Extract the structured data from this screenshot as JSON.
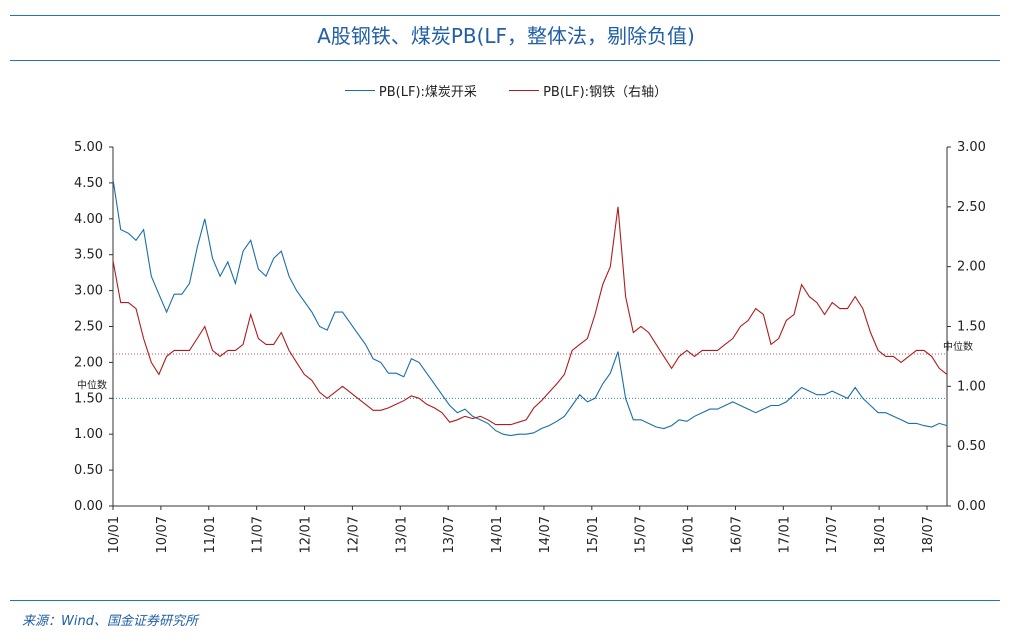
{
  "header": {
    "title": "A股钢铁、煤炭PB(LF，整体法，剔除负值)"
  },
  "footer": {
    "source": "来源：Wind、国金证券研究所"
  },
  "colors": {
    "coal": "#1a6fa8",
    "steel": "#b01c1c",
    "rule": "#1f77b4",
    "title": "#1f5fa8"
  },
  "chart_data": {
    "type": "line",
    "title": "A股钢铁、煤炭PB(LF，整体法，剔除负值)",
    "x": [
      "10/01",
      "10/07",
      "11/01",
      "11/07",
      "12/01",
      "12/07",
      "13/01",
      "13/07",
      "14/01",
      "14/07",
      "15/01",
      "15/07",
      "16/01",
      "16/07",
      "17/01",
      "17/07",
      "18/01",
      "18/07"
    ],
    "x_ticks": [
      "10/01",
      "10/07",
      "11/01",
      "11/07",
      "12/01",
      "12/07",
      "13/01",
      "13/07",
      "14/01",
      "14/07",
      "15/01",
      "15/07",
      "16/01",
      "16/07",
      "17/01",
      "17/07",
      "18/01",
      "18/07"
    ],
    "yleft": {
      "lim": [
        0,
        5
      ],
      "ticks": [
        "0.00",
        "0.50",
        "1.00",
        "1.50",
        "2.00",
        "2.50",
        "3.00",
        "3.50",
        "4.00",
        "4.50",
        "5.00"
      ]
    },
    "yright": {
      "lim": [
        0,
        3
      ],
      "ticks": [
        "0.00",
        "0.50",
        "1.00",
        "1.50",
        "2.00",
        "2.50",
        "3.00"
      ]
    },
    "median_label": "中位数",
    "series": [
      {
        "name": "PB(LF):煤炭开采",
        "axis": "left",
        "color": "#1a6fa8",
        "median": 1.5,
        "values": [
          [
            0,
            4.55
          ],
          [
            1,
            3.85
          ],
          [
            2,
            3.8
          ],
          [
            3,
            3.7
          ],
          [
            4,
            3.85
          ],
          [
            5,
            3.2
          ],
          [
            6,
            2.95
          ],
          [
            7,
            2.7
          ],
          [
            8,
            2.95
          ],
          [
            9,
            2.95
          ],
          [
            10,
            3.1
          ],
          [
            11,
            3.6
          ],
          [
            12,
            4.0
          ],
          [
            13,
            3.45
          ],
          [
            14,
            3.2
          ],
          [
            15,
            3.4
          ],
          [
            16,
            3.1
          ],
          [
            17,
            3.55
          ],
          [
            18,
            3.7
          ],
          [
            19,
            3.3
          ],
          [
            20,
            3.2
          ],
          [
            21,
            3.45
          ],
          [
            22,
            3.55
          ],
          [
            23,
            3.2
          ],
          [
            24,
            3.0
          ],
          [
            25,
            2.85
          ],
          [
            26,
            2.7
          ],
          [
            27,
            2.5
          ],
          [
            28,
            2.45
          ],
          [
            29,
            2.7
          ],
          [
            30,
            2.7
          ],
          [
            31,
            2.55
          ],
          [
            32,
            2.4
          ],
          [
            33,
            2.25
          ],
          [
            34,
            2.05
          ],
          [
            35,
            2.0
          ],
          [
            36,
            1.85
          ],
          [
            37,
            1.85
          ],
          [
            38,
            1.8
          ],
          [
            39,
            2.05
          ],
          [
            40,
            2.0
          ],
          [
            41,
            1.85
          ],
          [
            42,
            1.7
          ],
          [
            43,
            1.55
          ],
          [
            44,
            1.4
          ],
          [
            45,
            1.3
          ],
          [
            46,
            1.35
          ],
          [
            47,
            1.25
          ],
          [
            48,
            1.2
          ],
          [
            49,
            1.15
          ],
          [
            50,
            1.05
          ],
          [
            51,
            1.0
          ],
          [
            52,
            0.98
          ],
          [
            53,
            1.0
          ],
          [
            54,
            1.0
          ],
          [
            55,
            1.02
          ],
          [
            56,
            1.08
          ],
          [
            57,
            1.12
          ],
          [
            58,
            1.18
          ],
          [
            59,
            1.25
          ],
          [
            60,
            1.4
          ],
          [
            61,
            1.55
          ],
          [
            62,
            1.45
          ],
          [
            63,
            1.5
          ],
          [
            64,
            1.7
          ],
          [
            65,
            1.85
          ],
          [
            66,
            2.15
          ],
          [
            67,
            1.5
          ],
          [
            68,
            1.2
          ],
          [
            69,
            1.2
          ],
          [
            70,
            1.15
          ],
          [
            71,
            1.1
          ],
          [
            72,
            1.08
          ],
          [
            73,
            1.12
          ],
          [
            74,
            1.2
          ],
          [
            75,
            1.18
          ],
          [
            76,
            1.25
          ],
          [
            77,
            1.3
          ],
          [
            78,
            1.35
          ],
          [
            79,
            1.35
          ],
          [
            80,
            1.4
          ],
          [
            81,
            1.45
          ],
          [
            82,
            1.4
          ],
          [
            83,
            1.35
          ],
          [
            84,
            1.3
          ],
          [
            85,
            1.35
          ],
          [
            86,
            1.4
          ],
          [
            87,
            1.4
          ],
          [
            88,
            1.45
          ],
          [
            89,
            1.55
          ],
          [
            90,
            1.65
          ],
          [
            91,
            1.6
          ],
          [
            92,
            1.55
          ],
          [
            93,
            1.55
          ],
          [
            94,
            1.6
          ],
          [
            95,
            1.55
          ],
          [
            96,
            1.5
          ],
          [
            97,
            1.65
          ],
          [
            98,
            1.5
          ],
          [
            99,
            1.4
          ],
          [
            100,
            1.3
          ],
          [
            101,
            1.3
          ],
          [
            102,
            1.25
          ],
          [
            103,
            1.2
          ],
          [
            104,
            1.15
          ],
          [
            105,
            1.15
          ],
          [
            106,
            1.12
          ],
          [
            107,
            1.1
          ],
          [
            108,
            1.15
          ],
          [
            109,
            1.12
          ]
        ]
      },
      {
        "name": "PB(LF):钢铁（右轴）",
        "axis": "right",
        "color": "#b01c1c",
        "median": 1.27,
        "values": [
          [
            0,
            2.05
          ],
          [
            1,
            1.7
          ],
          [
            2,
            1.7
          ],
          [
            3,
            1.65
          ],
          [
            4,
            1.4
          ],
          [
            5,
            1.2
          ],
          [
            6,
            1.1
          ],
          [
            7,
            1.25
          ],
          [
            8,
            1.3
          ],
          [
            9,
            1.3
          ],
          [
            10,
            1.3
          ],
          [
            11,
            1.4
          ],
          [
            12,
            1.5
          ],
          [
            13,
            1.3
          ],
          [
            14,
            1.25
          ],
          [
            15,
            1.3
          ],
          [
            16,
            1.3
          ],
          [
            17,
            1.35
          ],
          [
            18,
            1.6
          ],
          [
            19,
            1.4
          ],
          [
            20,
            1.35
          ],
          [
            21,
            1.35
          ],
          [
            22,
            1.45
          ],
          [
            23,
            1.3
          ],
          [
            24,
            1.2
          ],
          [
            25,
            1.1
          ],
          [
            26,
            1.05
          ],
          [
            27,
            0.95
          ],
          [
            28,
            0.9
          ],
          [
            29,
            0.95
          ],
          [
            30,
            1.0
          ],
          [
            31,
            0.95
          ],
          [
            32,
            0.9
          ],
          [
            33,
            0.85
          ],
          [
            34,
            0.8
          ],
          [
            35,
            0.8
          ],
          [
            36,
            0.82
          ],
          [
            37,
            0.85
          ],
          [
            38,
            0.88
          ],
          [
            39,
            0.92
          ],
          [
            40,
            0.9
          ],
          [
            41,
            0.85
          ],
          [
            42,
            0.82
          ],
          [
            43,
            0.78
          ],
          [
            44,
            0.7
          ],
          [
            45,
            0.72
          ],
          [
            46,
            0.75
          ],
          [
            47,
            0.73
          ],
          [
            48,
            0.75
          ],
          [
            49,
            0.72
          ],
          [
            50,
            0.68
          ],
          [
            51,
            0.68
          ],
          [
            52,
            0.68
          ],
          [
            53,
            0.7
          ],
          [
            54,
            0.72
          ],
          [
            55,
            0.82
          ],
          [
            56,
            0.88
          ],
          [
            57,
            0.95
          ],
          [
            58,
            1.02
          ],
          [
            59,
            1.1
          ],
          [
            60,
            1.3
          ],
          [
            61,
            1.35
          ],
          [
            62,
            1.4
          ],
          [
            63,
            1.6
          ],
          [
            64,
            1.85
          ],
          [
            65,
            2.0
          ],
          [
            66,
            2.5
          ],
          [
            67,
            1.75
          ],
          [
            68,
            1.45
          ],
          [
            69,
            1.5
          ],
          [
            70,
            1.45
          ],
          [
            71,
            1.35
          ],
          [
            72,
            1.25
          ],
          [
            73,
            1.15
          ],
          [
            74,
            1.25
          ],
          [
            75,
            1.3
          ],
          [
            76,
            1.25
          ],
          [
            77,
            1.3
          ],
          [
            78,
            1.3
          ],
          [
            79,
            1.3
          ],
          [
            80,
            1.35
          ],
          [
            81,
            1.4
          ],
          [
            82,
            1.5
          ],
          [
            83,
            1.55
          ],
          [
            84,
            1.65
          ],
          [
            85,
            1.6
          ],
          [
            86,
            1.35
          ],
          [
            87,
            1.4
          ],
          [
            88,
            1.55
          ],
          [
            89,
            1.6
          ],
          [
            90,
            1.85
          ],
          [
            91,
            1.75
          ],
          [
            92,
            1.7
          ],
          [
            93,
            1.6
          ],
          [
            94,
            1.7
          ],
          [
            95,
            1.65
          ],
          [
            96,
            1.65
          ],
          [
            97,
            1.75
          ],
          [
            98,
            1.65
          ],
          [
            99,
            1.45
          ],
          [
            100,
            1.3
          ],
          [
            101,
            1.25
          ],
          [
            102,
            1.25
          ],
          [
            103,
            1.2
          ],
          [
            104,
            1.25
          ],
          [
            105,
            1.3
          ],
          [
            106,
            1.3
          ],
          [
            107,
            1.25
          ],
          [
            108,
            1.15
          ],
          [
            109,
            1.1
          ]
        ]
      }
    ]
  }
}
